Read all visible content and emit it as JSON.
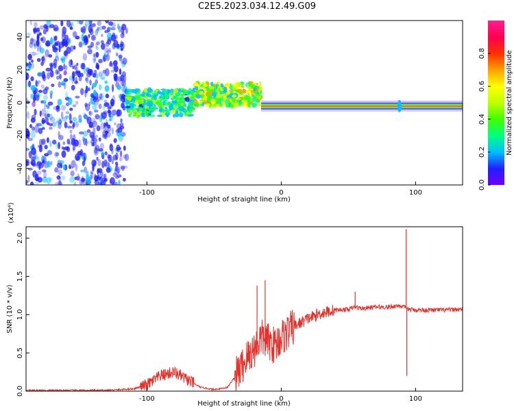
{
  "figure_title": "C2E5.2023.034.12.49.G09",
  "chart_data": [
    {
      "type": "heatmap",
      "xlabel": "Height of straight line (km)",
      "ylabel": "Frequency (Hz)",
      "xlim": [
        -190,
        135
      ],
      "ylim": [
        -50,
        50
      ],
      "xticks": [
        -100,
        0,
        100
      ],
      "yticks": [
        -40,
        -20,
        0,
        20,
        40
      ],
      "colorbar": {
        "label": "Normalized spectral amplitude",
        "range": [
          0,
          1
        ],
        "ticks": [
          "0.0",
          "0.2",
          "0.4",
          "0.6",
          "0.8"
        ],
        "colormap": [
          "#7000ff",
          "#2020ff",
          "#00c0ff",
          "#00ff80",
          "#40ff00",
          "#c0ff00",
          "#ffff00",
          "#ffa000",
          "#ff3000",
          "#ff0050",
          "#ff1f8f"
        ]
      },
      "description_segments": [
        {
          "x_range": [
            -190,
            -115
          ],
          "freq_center": 0,
          "freq_spread": 50,
          "amplitude": 0.12,
          "pattern": "scattered noise"
        },
        {
          "x_range": [
            -115,
            -65
          ],
          "freq_center": 0,
          "freq_spread": 8,
          "amplitude": 0.35
        },
        {
          "x_range": [
            -65,
            -15
          ],
          "freq_center": 5,
          "freq_spread": 7,
          "amplitude": 0.5
        },
        {
          "x_range": [
            -15,
            135
          ],
          "freq_center": -2,
          "freq_spread": 2,
          "amplitude": 0.95,
          "pattern": "steady carrier"
        }
      ]
    },
    {
      "type": "line",
      "xlabel": "Height of straight line (km)",
      "ylabel": "SNR (10 * v/v)",
      "y_multiplier": "(x10⁴)",
      "xlim": [
        -190,
        135
      ],
      "ylim": [
        0,
        2.15
      ],
      "xticks": [
        -100,
        0,
        100
      ],
      "yticks": [
        "0.0",
        "0.5",
        "1.0",
        "1.5",
        "2.0"
      ],
      "series": [
        {
          "color": "#e8302a",
          "x": [
            -190,
            -160,
            -130,
            -110,
            -100,
            -90,
            -80,
            -70,
            -60,
            -50,
            -40,
            -30,
            -25,
            -20,
            -15,
            -10,
            -5,
            0,
            10,
            20,
            30,
            40,
            50,
            55,
            60,
            70,
            80,
            88,
            91,
            93,
            95,
            100,
            110,
            120,
            135
          ],
          "y": [
            0.01,
            0.01,
            0.01,
            0.03,
            0.08,
            0.2,
            0.25,
            0.15,
            0.05,
            0.02,
            0.05,
            0.3,
            0.45,
            0.55,
            0.7,
            0.65,
            0.6,
            0.7,
            0.85,
            0.95,
            1.02,
            1.06,
            1.07,
            1.1,
            1.08,
            1.1,
            1.1,
            1.12,
            1.1,
            1.08,
            1.07,
            1.06,
            1.06,
            1.06,
            1.07
          ],
          "spikes": [
            {
              "x": -12,
              "y": 1.45
            },
            {
              "x": -18,
              "y": 1.38
            },
            {
              "x": 55,
              "y": 1.3
            },
            {
              "x": 93,
              "y": 2.12
            },
            {
              "x": 93.5,
              "y": 0.2
            }
          ]
        }
      ]
    }
  ]
}
